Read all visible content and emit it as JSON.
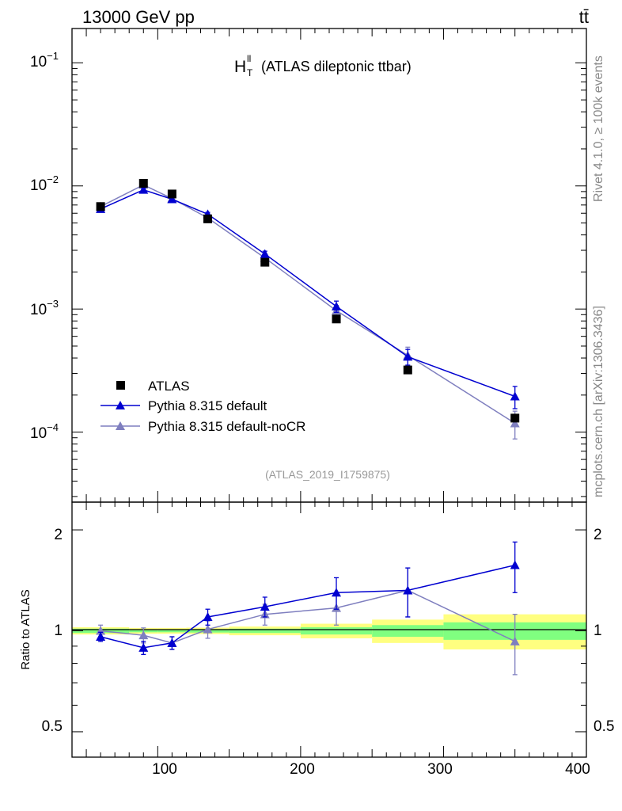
{
  "header": {
    "left": "13000 GeV pp",
    "right": "tt̄"
  },
  "side_text": {
    "rivet": "Rivet 4.1.0, ≥ 100k events",
    "site": "mcplots.cern.ch [arXiv:1306.3436]"
  },
  "colors": {
    "data": "#000000",
    "default": "#0000d0",
    "nocr": "#7f7fbf",
    "band_inner": "#80ff80",
    "band_outer": "#ffff80"
  },
  "chart_data": [
    {
      "id": "main",
      "type": "line",
      "yscale": "log",
      "title": "H_T^ll",
      "title_main": "H",
      "title_sup": "ll",
      "title_sub": "T",
      "title_suffix": "(ATLAS dileptonic ttbar)",
      "watermark": "(ATLAS_2019_I1759875)",
      "xlim": [
        40,
        400
      ],
      "ylim": [
        2.7e-05,
        0.19
      ],
      "ytick_labels": [
        {
          "value": 0.1,
          "base": "10",
          "exp": "−1"
        },
        {
          "value": 0.01,
          "base": "10",
          "exp": "−2"
        },
        {
          "value": 0.001,
          "base": "10",
          "exp": "−3"
        },
        {
          "value": 0.0001,
          "base": "10",
          "exp": "−4"
        }
      ],
      "legend": {
        "position": "bottom-left",
        "entries": [
          "ATLAS",
          "Pythia 8.315 default",
          "Pythia 8.315 default-noCR"
        ]
      },
      "series": [
        {
          "name": "ATLAS",
          "x": [
            60,
            90,
            110,
            135,
            175,
            225,
            275,
            350
          ],
          "values": [
            0.0068,
            0.0105,
            0.0086,
            0.0054,
            0.0024,
            0.00083,
            0.00032,
            0.00013
          ]
        },
        {
          "name": "Pythia 8.315 default",
          "x": [
            60,
            90,
            110,
            135,
            175,
            225,
            275,
            350
          ],
          "values": [
            0.0065,
            0.0093,
            0.0078,
            0.0059,
            0.0028,
            0.00105,
            0.00041,
            0.000195
          ],
          "err": [
            0.0002,
            0.0003,
            0.0002,
            0.0002,
            0.00015,
            0.00011,
            6e-05,
            4e-05
          ]
        },
        {
          "name": "Pythia 8.315 default-noCR",
          "x": [
            60,
            90,
            110,
            135,
            175,
            225,
            275,
            350
          ],
          "values": [
            0.0068,
            0.0102,
            0.0079,
            0.0055,
            0.0026,
            0.00097,
            0.00042,
            0.000118
          ],
          "err": [
            0.0002,
            0.0003,
            0.0002,
            0.0002,
            0.00015,
            0.0001,
            7e-05,
            3e-05
          ]
        }
      ]
    },
    {
      "id": "ratio",
      "type": "line",
      "yscale": "log",
      "ylabel": "Ratio to ATLAS",
      "xlim": [
        40,
        400
      ],
      "ylim": [
        0.42,
        2.42
      ],
      "xtick_labels": [
        "100",
        "200",
        "300",
        "400"
      ],
      "xticks": [
        100,
        200,
        300,
        400
      ],
      "ytick_labels": [
        "0.5",
        "1",
        "2"
      ],
      "yticks": [
        0.5,
        1,
        2
      ],
      "bands": {
        "edges": [
          40,
          80,
          100,
          120,
          150,
          200,
          250,
          300,
          400
        ],
        "inner": [
          0.015,
          0.01,
          0.01,
          0.012,
          0.015,
          0.025,
          0.04,
          0.06
        ],
        "outer": [
          0.025,
          0.02,
          0.02,
          0.022,
          0.03,
          0.05,
          0.08,
          0.12
        ]
      },
      "series": [
        {
          "name": "Pythia 8.315 default",
          "x": [
            60,
            90,
            110,
            135,
            175,
            225,
            275,
            350
          ],
          "values": [
            0.96,
            0.89,
            0.92,
            1.1,
            1.18,
            1.3,
            1.32,
            1.57
          ],
          "err": [
            0.03,
            0.04,
            0.04,
            0.06,
            0.08,
            0.14,
            0.22,
            0.27
          ]
        },
        {
          "name": "Pythia 8.315 default-noCR",
          "x": [
            60,
            90,
            110,
            135,
            175,
            225,
            275,
            350
          ],
          "values": [
            1.0,
            0.97,
            0.92,
            1.01,
            1.12,
            1.17,
            1.32,
            0.93
          ],
          "err": [
            0.04,
            0.05,
            0.04,
            0.06,
            0.08,
            0.13,
            0.22,
            0.19
          ]
        }
      ]
    }
  ]
}
